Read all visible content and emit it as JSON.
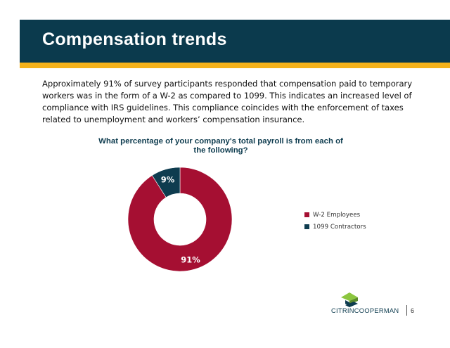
{
  "header": {
    "title": "Compensation trends"
  },
  "intro_text": "Approximately 91% of survey participants responded that compensation paid to temporary workers was in the form of a W-2 as compared to 1099. This indicates an increased level of compliance with IRS guidelines. This compliance coincides with the enforcement of taxes related to unemployment and workers’ compensation insurance.",
  "chart_data": {
    "type": "pie",
    "variant": "donut",
    "title": "What percentage of your company's total payroll is from each of the following?",
    "series": [
      {
        "name": "W-2 Employees",
        "value": 91,
        "label": "91%",
        "color": "#a50f32",
        "label_color": "#ffffff"
      },
      {
        "name": "1099 Contractors",
        "value": 9,
        "label": "9%",
        "color": "#0e3c4f",
        "label_color": "#ffffff"
      }
    ],
    "legend_position": "right"
  },
  "colors": {
    "header_bg": "#0b3a4d",
    "accent": "#f5b21b",
    "logo_green": "#8cc63f"
  },
  "branding": {
    "logo_part_1": "CITRIN",
    "logo_part_2": "COOPERMAN",
    "logo_part_1_color": "#0e3c4f",
    "logo_part_2_color": "#0e3c4f"
  },
  "page_number": "6"
}
